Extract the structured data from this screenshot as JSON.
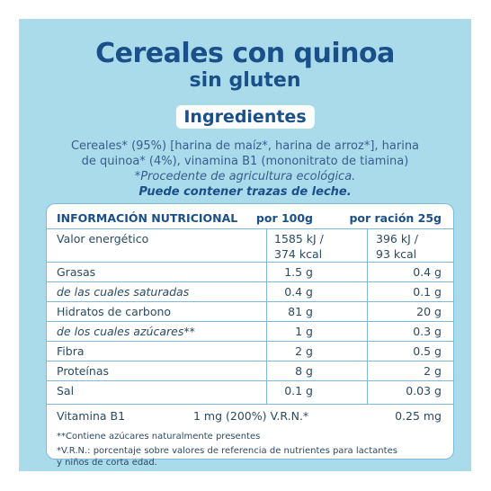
{
  "title": "Cereales con quinoa",
  "subtitle": "sin gluten",
  "ingredients_heading": "Ingredientes",
  "ingredients": {
    "line1": "Cereales* (95%) [harina de maíz*, harina de arroz*], harina",
    "line2": "de quinoa* (4%), vinamina B1 (mononitrato de tiamina)",
    "line3": "*Procedente de agricultura ecológica.",
    "line4": "Puede contener trazas de leche."
  },
  "table": {
    "header": {
      "label": "INFORMACIÓN NUTRICIONAL",
      "per100": "por 100g",
      "perportion": "por ración 25g"
    },
    "energy": {
      "label": "Valor energético",
      "per100_kj": "1585 kJ /",
      "per100_kcal": "374 kcal",
      "portion_kj": "396 kJ /",
      "portion_kcal": "93 kcal"
    },
    "rows": [
      {
        "label": "Grasas",
        "per100": "1.5 g",
        "portion": "0.4 g"
      },
      {
        "label": "de las cuales saturadas",
        "per100": "0.4 g",
        "portion": "0.1 g"
      },
      {
        "label": "Hidratos de carbono",
        "per100": "81 g",
        "portion": "20 g"
      },
      {
        "label": "de los cuales azúcares**",
        "per100": "1 g",
        "portion": "0.3 g"
      },
      {
        "label": "Fibra",
        "per100": "2 g",
        "portion": "0.5 g"
      },
      {
        "label": "Proteínas",
        "per100": "8 g",
        "portion": "2 g"
      },
      {
        "label": "Sal",
        "per100": "0.1 g",
        "portion": "0.03 g"
      }
    ],
    "vitamin": {
      "label": "Vitamina B1",
      "per100": "1 mg (200%) V.R.N.*",
      "portion": "0.25 mg"
    },
    "notes": {
      "note1": "**Contiene azúcares naturalmente presentes",
      "note2": "*V.R.N.: porcentaje sobre valores de referencia de nutrientes para lactantes",
      "note3": "y niños de corta edad."
    }
  },
  "colors": {
    "background_panel": "#aadbeb",
    "title_blue": "#1a4f8a",
    "text_blue": "#355f8c",
    "separator": "#7fb8d8"
  }
}
